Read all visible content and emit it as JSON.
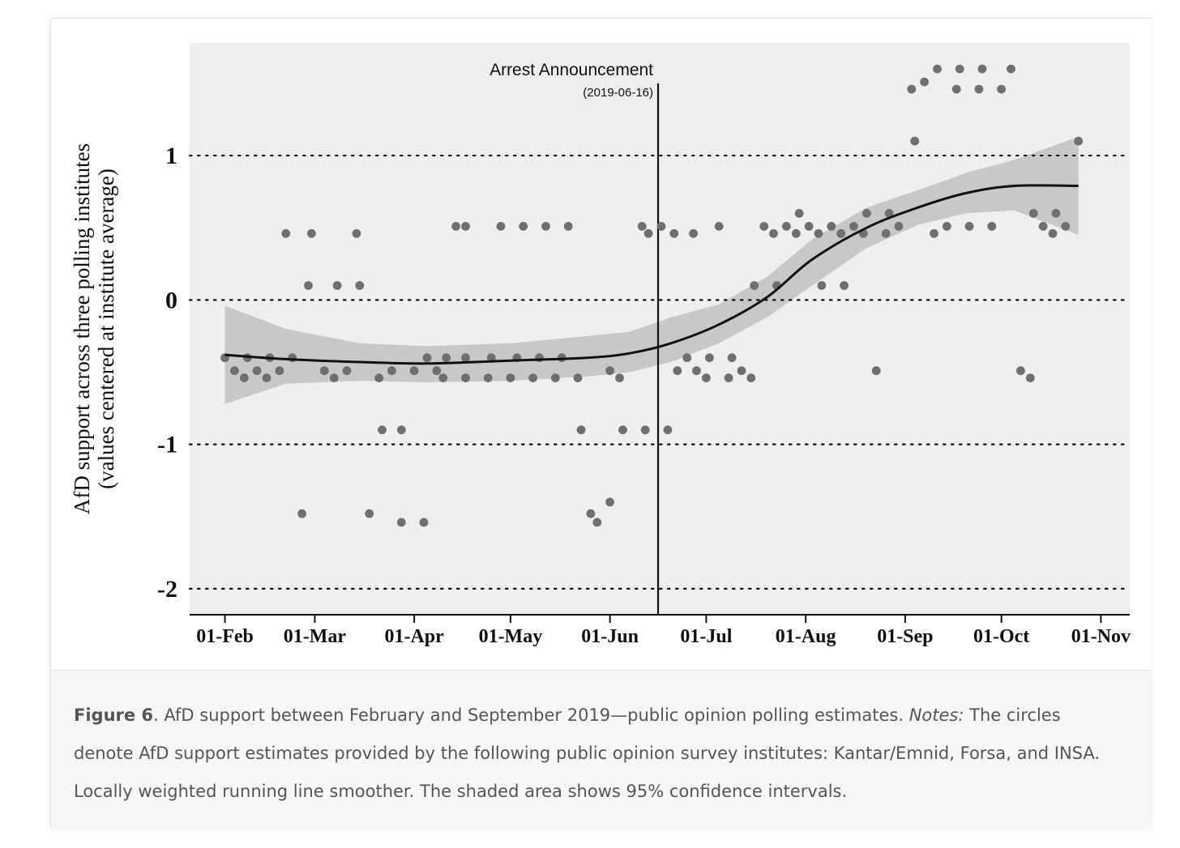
{
  "caption": {
    "figure_label": "Figure 6",
    "text": ". AfD support between February and September 2019—public opinion polling estimates. ",
    "notes_label": "Notes:",
    "notes_text": " The circles denote AfD support estimates provided by the following public opinion survey institutes: Kantar/Emnid, Forsa, and INSA. Locally weighted running line smoother. The shaded area shows 95% confidence intervals."
  },
  "chart_data": {
    "type": "scatter",
    "title": "",
    "xlabel": "",
    "ylabel": "AfD support across three polling institutes",
    "ylabel_sub": "(values centered at institute average)",
    "x_range": [
      "2019-01-21",
      "2019-11-10"
    ],
    "ylim": [
      -2.18,
      1.78
    ],
    "x_ticks": [
      {
        "date": "2019-02-01",
        "label": "01-Feb"
      },
      {
        "date": "2019-03-01",
        "label": "01-Mar"
      },
      {
        "date": "2019-04-01",
        "label": "01-Apr"
      },
      {
        "date": "2019-05-01",
        "label": "01-May"
      },
      {
        "date": "2019-06-01",
        "label": "01-Jun"
      },
      {
        "date": "2019-07-01",
        "label": "01-Jul"
      },
      {
        "date": "2019-08-01",
        "label": "01-Aug"
      },
      {
        "date": "2019-09-01",
        "label": "01-Sep"
      },
      {
        "date": "2019-10-01",
        "label": "01-Oct"
      },
      {
        "date": "2019-11-01",
        "label": "01-Nov"
      }
    ],
    "y_ticks": [
      {
        "value": 1,
        "label": "1"
      },
      {
        "value": 0,
        "label": "0"
      },
      {
        "value": -1,
        "label": "-1"
      },
      {
        "value": -2,
        "label": "-2"
      }
    ],
    "gridlines": "dotted horizontal at y ticks",
    "colors": {
      "panel": "#efefef",
      "points": "#6f6f6f",
      "band": "#c8c8c8",
      "line": "#111111"
    },
    "annotation": {
      "date": "2019-06-16",
      "label": "Arrest Announcement",
      "sublabel": "(2019-06-16)"
    },
    "points": [
      {
        "x": "2019-02-01",
        "y": -0.4
      },
      {
        "x": "2019-02-04",
        "y": -0.49
      },
      {
        "x": "2019-02-07",
        "y": -0.54
      },
      {
        "x": "2019-02-08",
        "y": -0.4
      },
      {
        "x": "2019-02-11",
        "y": -0.49
      },
      {
        "x": "2019-02-14",
        "y": -0.54
      },
      {
        "x": "2019-02-15",
        "y": -0.4
      },
      {
        "x": "2019-02-18",
        "y": -0.49
      },
      {
        "x": "2019-02-20",
        "y": 0.46
      },
      {
        "x": "2019-02-22",
        "y": -0.4
      },
      {
        "x": "2019-02-25",
        "y": -1.48
      },
      {
        "x": "2019-02-27",
        "y": 0.1
      },
      {
        "x": "2019-02-28",
        "y": 0.46
      },
      {
        "x": "2019-03-04",
        "y": -0.49
      },
      {
        "x": "2019-03-07",
        "y": -0.54
      },
      {
        "x": "2019-03-08",
        "y": 0.1
      },
      {
        "x": "2019-03-11",
        "y": -0.49
      },
      {
        "x": "2019-03-14",
        "y": 0.46
      },
      {
        "x": "2019-03-15",
        "y": 0.1
      },
      {
        "x": "2019-03-18",
        "y": -1.48
      },
      {
        "x": "2019-03-21",
        "y": -0.54
      },
      {
        "x": "2019-03-22",
        "y": -0.9
      },
      {
        "x": "2019-03-25",
        "y": -0.49
      },
      {
        "x": "2019-03-28",
        "y": -0.9
      },
      {
        "x": "2019-03-28",
        "y": -1.54
      },
      {
        "x": "2019-04-01",
        "y": -0.49
      },
      {
        "x": "2019-04-04",
        "y": -1.54
      },
      {
        "x": "2019-04-05",
        "y": -0.4
      },
      {
        "x": "2019-04-08",
        "y": -0.49
      },
      {
        "x": "2019-04-10",
        "y": -0.54
      },
      {
        "x": "2019-04-11",
        "y": -0.4
      },
      {
        "x": "2019-04-14",
        "y": 0.51
      },
      {
        "x": "2019-04-17",
        "y": 0.51
      },
      {
        "x": "2019-04-17",
        "y": -0.4
      },
      {
        "x": "2019-04-17",
        "y": -0.54
      },
      {
        "x": "2019-04-24",
        "y": -0.54
      },
      {
        "x": "2019-04-25",
        "y": -0.4
      },
      {
        "x": "2019-04-28",
        "y": 0.51
      },
      {
        "x": "2019-05-01",
        "y": -0.54
      },
      {
        "x": "2019-05-03",
        "y": -0.4
      },
      {
        "x": "2019-05-05",
        "y": 0.51
      },
      {
        "x": "2019-05-08",
        "y": -0.54
      },
      {
        "x": "2019-05-10",
        "y": -0.4
      },
      {
        "x": "2019-05-12",
        "y": 0.51
      },
      {
        "x": "2019-05-15",
        "y": -0.54
      },
      {
        "x": "2019-05-17",
        "y": -0.4
      },
      {
        "x": "2019-05-19",
        "y": 0.51
      },
      {
        "x": "2019-05-22",
        "y": -0.54
      },
      {
        "x": "2019-05-23",
        "y": -0.9
      },
      {
        "x": "2019-05-26",
        "y": -1.48
      },
      {
        "x": "2019-05-28",
        "y": -1.54
      },
      {
        "x": "2019-06-01",
        "y": -1.4
      },
      {
        "x": "2019-06-01",
        "y": -0.49
      },
      {
        "x": "2019-06-04",
        "y": -0.54
      },
      {
        "x": "2019-06-05",
        "y": -0.9
      },
      {
        "x": "2019-06-11",
        "y": 0.51
      },
      {
        "x": "2019-06-12",
        "y": -0.9
      },
      {
        "x": "2019-06-13",
        "y": 0.46
      },
      {
        "x": "2019-06-17",
        "y": 0.51
      },
      {
        "x": "2019-06-19",
        "y": -0.9
      },
      {
        "x": "2019-06-21",
        "y": 0.46
      },
      {
        "x": "2019-06-22",
        "y": -0.49
      },
      {
        "x": "2019-06-25",
        "y": -0.4
      },
      {
        "x": "2019-06-27",
        "y": 0.46
      },
      {
        "x": "2019-06-28",
        "y": -0.49
      },
      {
        "x": "2019-07-01",
        "y": -0.54
      },
      {
        "x": "2019-07-02",
        "y": -0.4
      },
      {
        "x": "2019-07-05",
        "y": 0.51
      },
      {
        "x": "2019-07-08",
        "y": -0.54
      },
      {
        "x": "2019-07-09",
        "y": -0.4
      },
      {
        "x": "2019-07-12",
        "y": -0.49
      },
      {
        "x": "2019-07-15",
        "y": -0.54
      },
      {
        "x": "2019-07-16",
        "y": 0.1
      },
      {
        "x": "2019-07-19",
        "y": 0.51
      },
      {
        "x": "2019-07-22",
        "y": 0.46
      },
      {
        "x": "2019-07-23",
        "y": 0.1
      },
      {
        "x": "2019-07-26",
        "y": 0.51
      },
      {
        "x": "2019-07-29",
        "y": 0.46
      },
      {
        "x": "2019-07-30",
        "y": 0.6
      },
      {
        "x": "2019-08-02",
        "y": 0.51
      },
      {
        "x": "2019-08-05",
        "y": 0.46
      },
      {
        "x": "2019-08-06",
        "y": 0.1
      },
      {
        "x": "2019-08-09",
        "y": 0.51
      },
      {
        "x": "2019-08-12",
        "y": 0.46
      },
      {
        "x": "2019-08-13",
        "y": 0.1
      },
      {
        "x": "2019-08-16",
        "y": 0.51
      },
      {
        "x": "2019-08-19",
        "y": 0.46
      },
      {
        "x": "2019-08-20",
        "y": 0.6
      },
      {
        "x": "2019-08-23",
        "y": -0.49
      },
      {
        "x": "2019-08-26",
        "y": 0.46
      },
      {
        "x": "2019-08-27",
        "y": 0.6
      },
      {
        "x": "2019-08-30",
        "y": 0.51
      },
      {
        "x": "2019-09-03",
        "y": 1.46
      },
      {
        "x": "2019-09-04",
        "y": 1.1
      },
      {
        "x": "2019-09-07",
        "y": 1.51
      },
      {
        "x": "2019-09-10",
        "y": 0.46
      },
      {
        "x": "2019-09-11",
        "y": 1.6
      },
      {
        "x": "2019-09-14",
        "y": 0.51
      },
      {
        "x": "2019-09-17",
        "y": 1.46
      },
      {
        "x": "2019-09-18",
        "y": 1.6
      },
      {
        "x": "2019-09-21",
        "y": 0.51
      },
      {
        "x": "2019-09-24",
        "y": 1.46
      },
      {
        "x": "2019-09-25",
        "y": 1.6
      },
      {
        "x": "2019-09-28",
        "y": 0.51
      },
      {
        "x": "2019-10-01",
        "y": 1.46
      },
      {
        "x": "2019-10-04",
        "y": 1.6
      },
      {
        "x": "2019-10-07",
        "y": -0.49
      },
      {
        "x": "2019-10-10",
        "y": -0.54
      },
      {
        "x": "2019-10-11",
        "y": 0.6
      },
      {
        "x": "2019-10-14",
        "y": 0.51
      },
      {
        "x": "2019-10-17",
        "y": 0.46
      },
      {
        "x": "2019-10-18",
        "y": 0.6
      },
      {
        "x": "2019-10-21",
        "y": 0.51
      },
      {
        "x": "2019-10-25",
        "y": 1.1
      }
    ],
    "smoother": [
      {
        "x": "2019-02-01",
        "y": -0.38,
        "lo": -0.72,
        "hi": -0.04
      },
      {
        "x": "2019-02-20",
        "y": -0.41,
        "lo": -0.58,
        "hi": -0.2
      },
      {
        "x": "2019-03-15",
        "y": -0.43,
        "lo": -0.56,
        "hi": -0.3
      },
      {
        "x": "2019-04-05",
        "y": -0.44,
        "lo": -0.57,
        "hi": -0.32
      },
      {
        "x": "2019-05-01",
        "y": -0.42,
        "lo": -0.56,
        "hi": -0.3
      },
      {
        "x": "2019-05-25",
        "y": -0.4,
        "lo": -0.53,
        "hi": -0.25
      },
      {
        "x": "2019-06-07",
        "y": -0.37,
        "lo": -0.5,
        "hi": -0.22
      },
      {
        "x": "2019-06-20",
        "y": -0.3,
        "lo": -0.43,
        "hi": -0.12
      },
      {
        "x": "2019-07-05",
        "y": -0.17,
        "lo": -0.3,
        "hi": -0.03
      },
      {
        "x": "2019-07-20",
        "y": 0.02,
        "lo": -0.12,
        "hi": 0.16
      },
      {
        "x": "2019-08-03",
        "y": 0.28,
        "lo": 0.1,
        "hi": 0.42
      },
      {
        "x": "2019-08-20",
        "y": 0.5,
        "lo": 0.36,
        "hi": 0.64
      },
      {
        "x": "2019-09-05",
        "y": 0.64,
        "lo": 0.52,
        "hi": 0.76
      },
      {
        "x": "2019-09-20",
        "y": 0.74,
        "lo": 0.6,
        "hi": 0.88
      },
      {
        "x": "2019-10-05",
        "y": 0.79,
        "lo": 0.62,
        "hi": 0.97
      },
      {
        "x": "2019-10-25",
        "y": 0.79,
        "lo": 0.45,
        "hi": 1.13
      }
    ]
  }
}
